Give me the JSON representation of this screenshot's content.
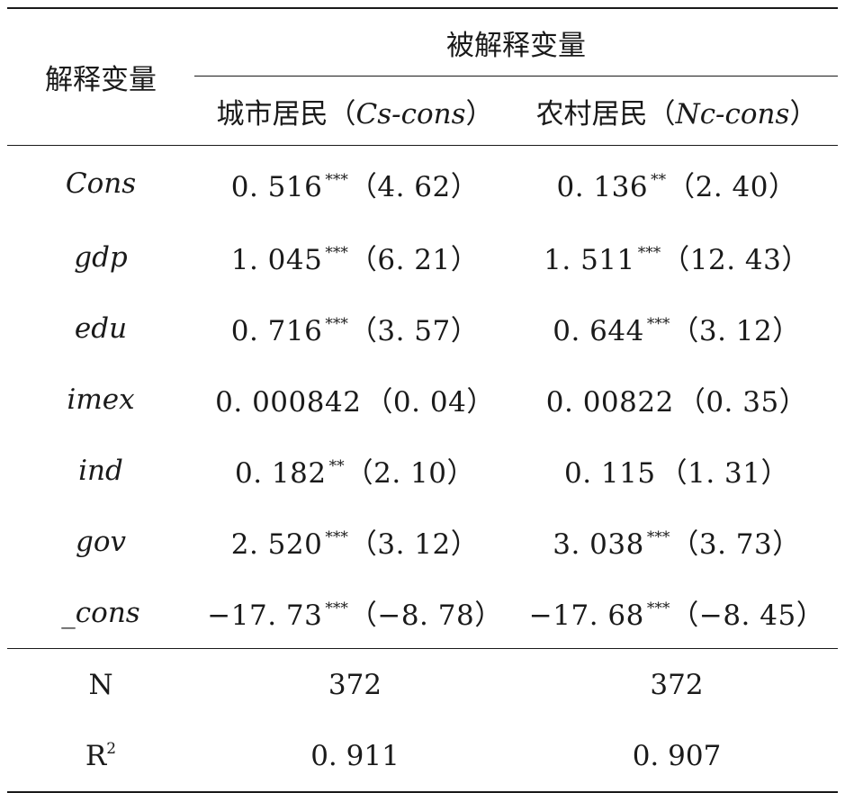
{
  "header": {
    "explanatory_label": "解释变量",
    "dependent_label": "被解释变量",
    "col1_prefix": "城市居民（",
    "col1_var": "Cs-cons",
    "col1_suffix": "）",
    "col2_prefix": "农村居民（",
    "col2_var": "Nc-cons",
    "col2_suffix": "）"
  },
  "rows": [
    {
      "var": "Cons",
      "c1": {
        "coef": "0. 516",
        "stars": "***",
        "t": "（4. 62）"
      },
      "c2": {
        "coef": "0. 136",
        "stars": "**",
        "t": "（2. 40）"
      }
    },
    {
      "var": "gdp",
      "c1": {
        "coef": "1. 045",
        "stars": "***",
        "t": "（6. 21）"
      },
      "c2": {
        "coef": "1. 511",
        "stars": "***",
        "t": "（12. 43）"
      }
    },
    {
      "var": "edu",
      "c1": {
        "coef": "0. 716",
        "stars": "***",
        "t": "（3. 57）"
      },
      "c2": {
        "coef": "0. 644",
        "stars": "***",
        "t": "（3. 12）"
      }
    },
    {
      "var": "imex",
      "c1": {
        "coef": "0. 000842",
        "stars": "",
        "t": "（0. 04）"
      },
      "c2": {
        "coef": "0. 00822",
        "stars": "",
        "t": "（0. 35）"
      }
    },
    {
      "var": "ind",
      "c1": {
        "coef": "0. 182",
        "stars": "**",
        "t": "（2. 10）"
      },
      "c2": {
        "coef": "0. 115",
        "stars": "",
        "t": "（1. 31）"
      }
    },
    {
      "var": "gov",
      "c1": {
        "coef": "2. 520",
        "stars": "***",
        "t": "（3. 12）"
      },
      "c2": {
        "coef": "3. 038",
        "stars": "***",
        "t": "（3. 73）"
      }
    },
    {
      "var": "_cons",
      "c1": {
        "coef": "−17. 73",
        "stars": "***",
        "t": "（−8. 78）"
      },
      "c2": {
        "coef": "−17. 68",
        "stars": "***",
        "t": "（−8. 45）"
      }
    }
  ],
  "stats": [
    {
      "label": "N",
      "label_sup": "",
      "c1": "372",
      "c2": "372"
    },
    {
      "label": "R",
      "label_sup": "2",
      "c1": "0. 911",
      "c2": "0. 907"
    }
  ]
}
